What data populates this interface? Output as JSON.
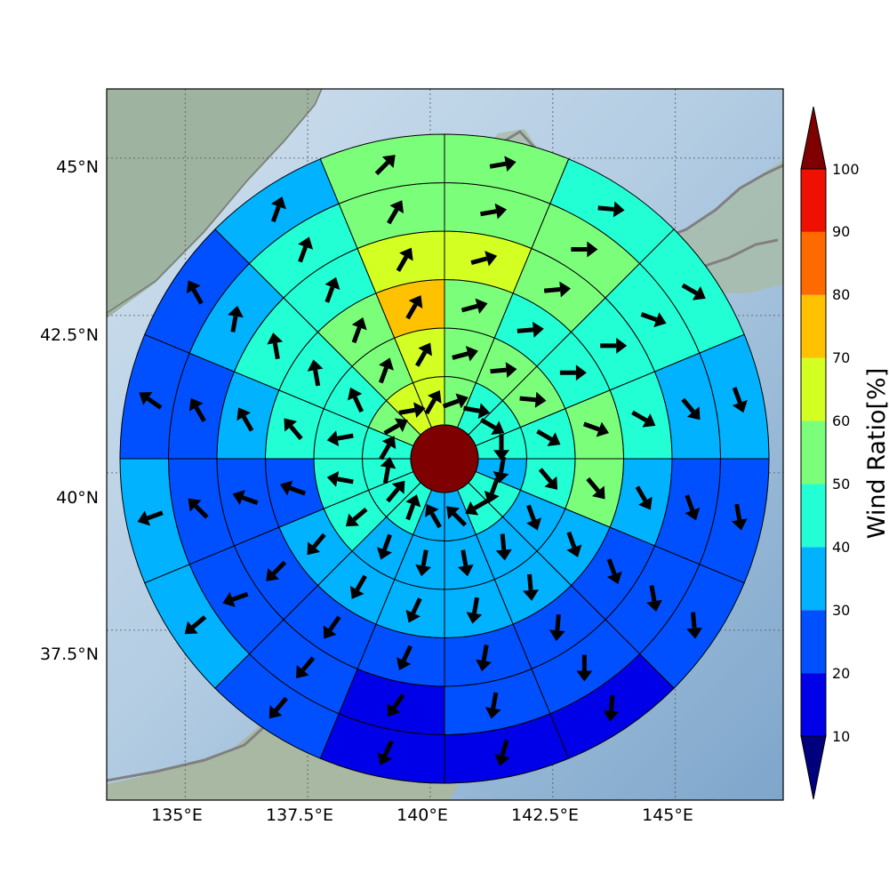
{
  "chart_data": {
    "type": "heatmap",
    "title": "",
    "projection": "polar-sector wind-ratio map",
    "map": {
      "lon_range": [
        133.4,
        147.2
      ],
      "lat_range": [
        34.8,
        46.1
      ],
      "x_ticks": [
        "135°E",
        "137.5°E",
        "140°E",
        "142.5°E",
        "145°E"
      ],
      "y_ticks": [
        "45°N",
        "42.5°N",
        "40°N",
        "37.5°N"
      ],
      "grid": true
    },
    "colorbar": {
      "label": "Wind Ratio[%]",
      "ticks": [
        "10",
        "20",
        "30",
        "40",
        "50",
        "60",
        "70",
        "80",
        "90",
        "100"
      ],
      "levels": [
        10,
        20,
        30,
        40,
        50,
        60,
        70,
        80,
        90,
        100
      ],
      "colors": [
        "#0000e8",
        "#0050ff",
        "#00b2ff",
        "#22ffd5",
        "#7bff7b",
        "#d4ff22",
        "#ffc200",
        "#ff6a00",
        "#ee1000"
      ],
      "under_color": "#00007f",
      "over_color": "#7f0000",
      "extend": "both"
    },
    "center": {
      "value": 100,
      "color": "#7f0000"
    },
    "rings": [
      1,
      2,
      3,
      4,
      5,
      6
    ],
    "sectors_per_ring": 16,
    "sector_order": "clockwise from north",
    "values": [
      [
        55,
        45,
        45,
        45,
        35,
        45,
        45,
        35,
        35,
        45,
        45,
        45,
        45,
        55,
        65,
        65
      ],
      [
        55,
        55,
        55,
        45,
        45,
        35,
        35,
        35,
        35,
        35,
        45,
        45,
        45,
        45,
        55,
        65
      ],
      [
        55,
        45,
        45,
        55,
        55,
        35,
        35,
        35,
        35,
        35,
        35,
        25,
        45,
        45,
        55,
        75
      ],
      [
        65,
        55,
        45,
        45,
        35,
        25,
        25,
        25,
        25,
        25,
        25,
        25,
        35,
        45,
        45,
        65
      ],
      [
        55,
        55,
        45,
        35,
        25,
        25,
        25,
        25,
        15,
        25,
        25,
        25,
        25,
        35,
        45,
        55
      ],
      [
        55,
        45,
        45,
        35,
        25,
        25,
        15,
        15,
        15,
        25,
        35,
        35,
        25,
        25,
        35,
        55
      ]
    ],
    "wind_direction_deg": [
      [
        70,
        100,
        120,
        180,
        190,
        200,
        240,
        315,
        330,
        20,
        40,
        10,
        30,
        60,
        80,
        30
      ],
      [
        75,
        85,
        95,
        120,
        140,
        160,
        175,
        170,
        190,
        200,
        230,
        280,
        260,
        335,
        20,
        30
      ],
      [
        75,
        85,
        90,
        110,
        140,
        160,
        175,
        190,
        205,
        210,
        220,
        290,
        320,
        350,
        20,
        30
      ],
      [
        75,
        85,
        90,
        120,
        150,
        160,
        185,
        190,
        205,
        215,
        225,
        290,
        330,
        350,
        20,
        30
      ],
      [
        80,
        90,
        110,
        140,
        160,
        170,
        180,
        190,
        215,
        220,
        250,
        315,
        330,
        10,
        20,
        30
      ],
      [
        80,
        95,
        120,
        160,
        170,
        175,
        185,
        195,
        205,
        220,
        230,
        250,
        305,
        330,
        20,
        45
      ]
    ]
  }
}
